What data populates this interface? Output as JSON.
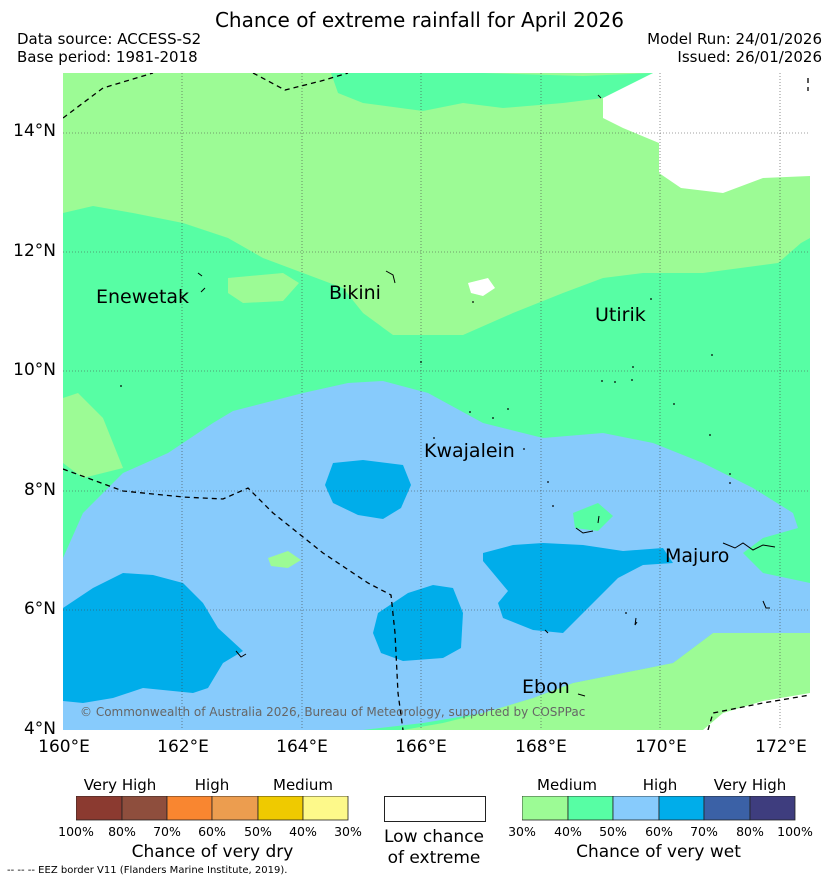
{
  "title": "Chance of extreme rainfall for April 2026",
  "header": {
    "data_source": "Data source: ACCESS-S2",
    "base_period": "Base period: 1981-2018",
    "model_run": "Model Run: 24/01/2026",
    "issued": "Issued: 26/01/2026"
  },
  "map": {
    "lon_ticks": [
      "160°E",
      "162°E",
      "164°E",
      "166°E",
      "168°E",
      "170°E",
      "172°E"
    ],
    "lat_ticks": [
      "14°N",
      "12°N",
      "10°N",
      "8°N",
      "6°N",
      "4°N"
    ],
    "places": {
      "enewetak": "Enewetak",
      "bikini": "Bikini",
      "utirik": "Utirik",
      "kwajalein": "Kwajalein",
      "majuro": "Majuro",
      "ebon": "Ebon"
    },
    "copyright": "© Commonwealth of Australia 2026, Bureau of Meteorology, supported by COSPPac",
    "colors": {
      "wet_medium": "#9cfb95",
      "wet_high_low": "#57fea4",
      "wet_high": "#87cbfc",
      "wet_very_high_low": "#00adea",
      "wet_very_high": "#3b61a6",
      "wet_extreme": "#3e3d7e",
      "low_chance": "#ffffff"
    }
  },
  "legend_dry": {
    "category_labels": [
      "Very High",
      "High",
      "Medium"
    ],
    "tick_labels": [
      "100%",
      "80%",
      "70%",
      "60%",
      "50%",
      "40%",
      "30%"
    ],
    "colors": [
      "#8b3a30",
      "#8e4e3d",
      "#f98630",
      "#ec9d4f",
      "#efca00",
      "#fdf98a"
    ],
    "title": "Chance of very dry"
  },
  "legend_low": {
    "line1": "Low chance",
    "line2": "of extreme"
  },
  "legend_wet": {
    "category_labels": [
      "Medium",
      "High",
      "Very High"
    ],
    "tick_labels": [
      "30%",
      "40%",
      "50%",
      "60%",
      "70%",
      "80%",
      "100%"
    ],
    "colors": [
      "#9cfb95",
      "#57fea4",
      "#87cbfc",
      "#00adea",
      "#3b61a6",
      "#3e3d7e"
    ],
    "title": "Chance of very wet"
  },
  "footer": "-- -- -- EEZ border V11 (Flanders Marine Institute, 2019)."
}
